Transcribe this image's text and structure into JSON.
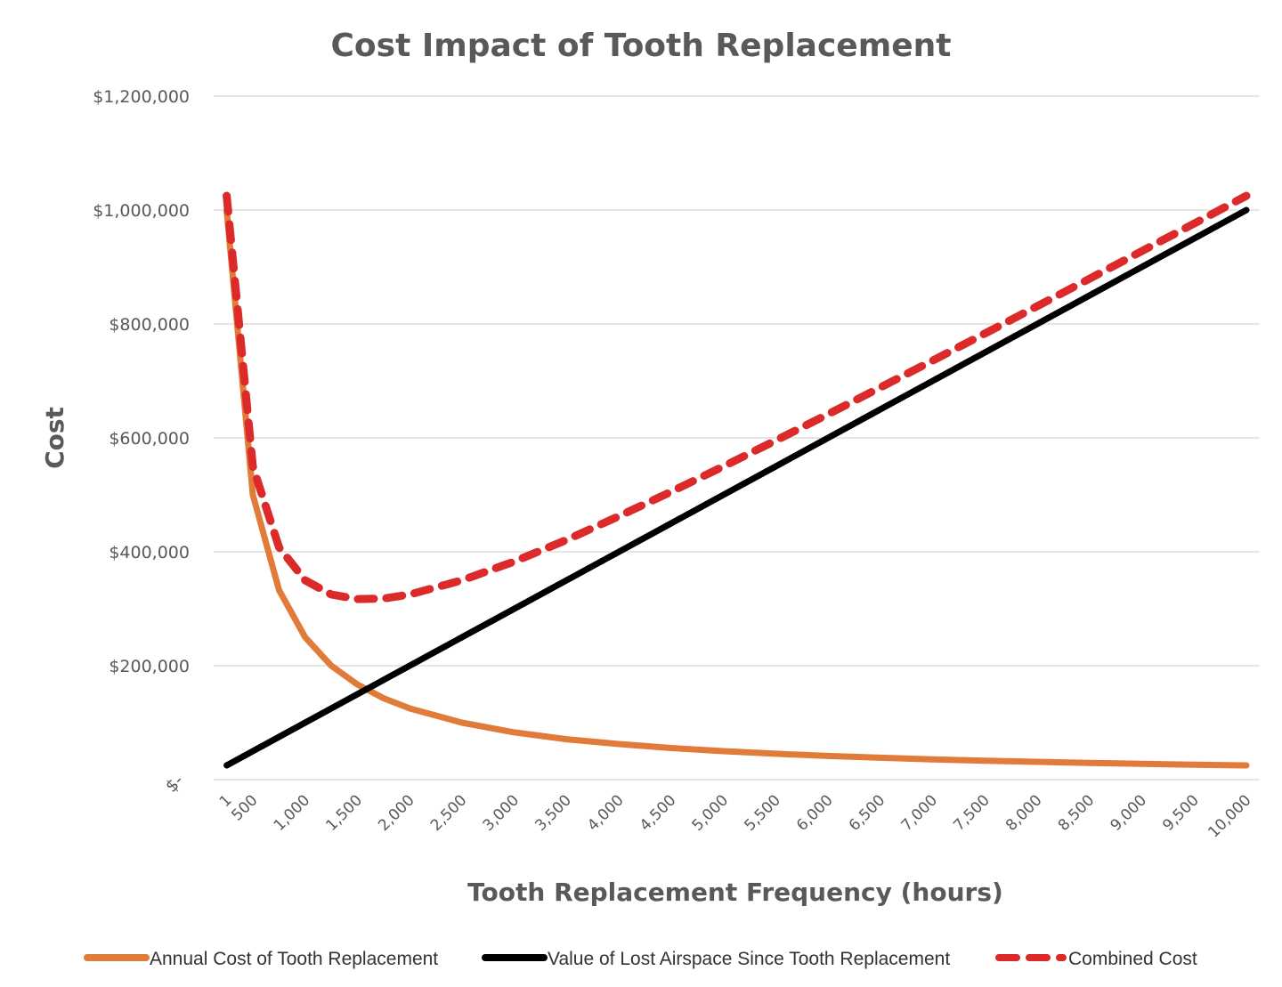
{
  "chart_data": {
    "type": "line",
    "title": "Cost Impact of Tooth Replacement",
    "xlabel": "Tooth Replacement Frequency (hours)",
    "ylabel": "Cost",
    "categories": [
      "1",
      "500",
      "1,000",
      "1,500",
      "2,000",
      "2,500",
      "3,000",
      "3,500",
      "4,000",
      "4,500",
      "5,000",
      "5,500",
      "6,000",
      "6,500",
      "7,000",
      "7,500",
      "8,000",
      "8,500",
      "9,000",
      "9,500",
      "10,000"
    ],
    "xlim": [
      1,
      10000
    ],
    "ylim": [
      0,
      1200000
    ],
    "yticks": [
      0,
      200000,
      400000,
      600000,
      800000,
      1000000,
      1200000
    ],
    "ytick_labels": [
      "$-",
      "$200,000",
      "$400,000",
      "$600,000",
      "$800,000",
      "$1,000,000",
      "$1,200,000"
    ],
    "grid": true,
    "legend_position": "bottom",
    "x": [
      250,
      500,
      750,
      1000,
      1250,
      1500,
      1750,
      2000,
      2500,
      3000,
      3500,
      4000,
      4500,
      5000,
      5500,
      6000,
      6500,
      7000,
      7500,
      8000,
      8500,
      9000,
      9500,
      10000
    ],
    "series": [
      {
        "name": "Annual Cost of Tooth Replacement",
        "color": "#E07B39",
        "style": "solid",
        "values": [
          1000000,
          500000,
          333000,
          250000,
          200000,
          167000,
          143000,
          125000,
          100000,
          83000,
          71000,
          62500,
          55500,
          50000,
          45500,
          41500,
          38500,
          35700,
          33300,
          31300,
          29400,
          27800,
          26300,
          25000
        ]
      },
      {
        "name": "Value of Lost Airspace Since Tooth Replacement",
        "color": "#000000",
        "style": "solid",
        "values": [
          25000,
          50000,
          75000,
          100000,
          125000,
          150000,
          175000,
          200000,
          250000,
          300000,
          350000,
          400000,
          450000,
          500000,
          550000,
          600000,
          650000,
          700000,
          750000,
          800000,
          850000,
          900000,
          950000,
          1000000
        ]
      },
      {
        "name": "Combined Cost",
        "color": "#DC2A2A",
        "style": "dashed",
        "values": [
          1025000,
          550000,
          408000,
          350000,
          325000,
          317000,
          318000,
          325000,
          350000,
          383000,
          421000,
          462500,
          505500,
          550000,
          595500,
          641500,
          688500,
          735700,
          783300,
          831300,
          879400,
          927800,
          976300,
          1025000
        ]
      }
    ]
  }
}
